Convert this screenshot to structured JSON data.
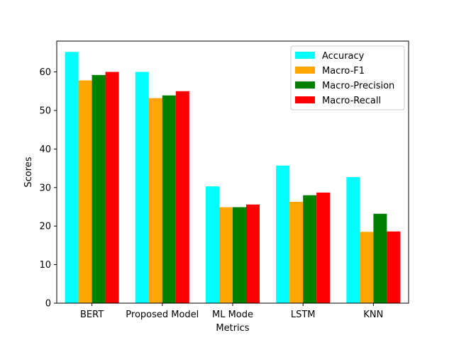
{
  "chart_data": {
    "type": "bar",
    "title": "",
    "xlabel": "Metrics",
    "ylabel": "Scores",
    "categories": [
      "BERT",
      "Proposed Model",
      "ML Mode",
      "LSTM",
      "KNN"
    ],
    "ylim": [
      0,
      68
    ],
    "yticks": [
      0,
      10,
      20,
      30,
      40,
      50,
      60
    ],
    "grid": false,
    "legend_position": "top-right",
    "series": [
      {
        "name": "Accuracy",
        "color": "#00ffff",
        "values": [
          65.2,
          60.0,
          30.3,
          35.7,
          32.7
        ]
      },
      {
        "name": "Macro-F1",
        "color": "#ffa500",
        "values": [
          57.8,
          53.2,
          24.9,
          26.3,
          18.5
        ]
      },
      {
        "name": "Macro-Precision",
        "color": "#008000",
        "values": [
          59.2,
          53.9,
          24.9,
          28.0,
          23.2
        ]
      },
      {
        "name": "Macro-Recall",
        "color": "#ff0000",
        "values": [
          60.0,
          55.0,
          25.6,
          28.7,
          18.6
        ]
      }
    ]
  }
}
